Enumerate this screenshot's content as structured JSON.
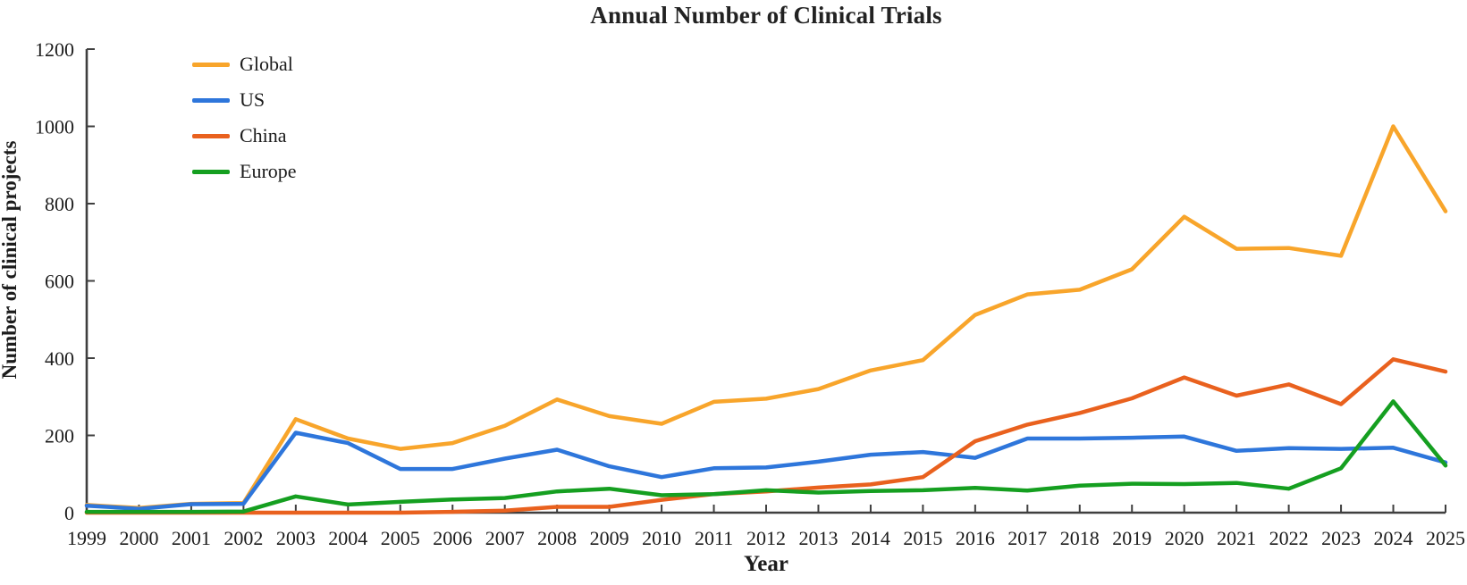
{
  "chart_data": {
    "type": "line",
    "title": "Annual Number of Clinical Trials",
    "xlabel": "Year",
    "ylabel": "Number of clinical projects",
    "x": [
      1999,
      2000,
      2001,
      2002,
      2003,
      2004,
      2005,
      2006,
      2007,
      2008,
      2009,
      2010,
      2011,
      2012,
      2013,
      2014,
      2015,
      2016,
      2017,
      2018,
      2019,
      2020,
      2021,
      2022,
      2023,
      2024,
      2025
    ],
    "ylim": [
      0,
      1200
    ],
    "yticks": [
      0,
      200,
      400,
      600,
      800,
      1000,
      1200
    ],
    "grid": false,
    "legend_position": "upper-left-inside",
    "axis_color": "#3f3f3f",
    "text_color": "#1c1c1c",
    "series": [
      {
        "name": "Global",
        "color": "#F8A52B",
        "values": [
          20,
          12,
          23,
          25,
          242,
          192,
          165,
          180,
          225,
          293,
          250,
          230,
          287,
          295,
          320,
          368,
          395,
          512,
          565,
          577,
          630,
          766,
          683,
          685,
          665,
          1000,
          780
        ]
      },
      {
        "name": "US",
        "color": "#2E76DB",
        "values": [
          18,
          10,
          22,
          23,
          207,
          180,
          113,
          113,
          140,
          163,
          120,
          92,
          115,
          117,
          132,
          150,
          157,
          142,
          192,
          192,
          194,
          197,
          160,
          167,
          165,
          168,
          130
        ]
      },
      {
        "name": "China",
        "color": "#E9611E",
        "values": [
          0,
          0,
          0,
          0,
          0,
          0,
          0,
          2,
          5,
          15,
          15,
          33,
          48,
          55,
          65,
          73,
          92,
          185,
          228,
          258,
          296,
          350,
          303,
          332,
          281,
          397,
          365
        ]
      },
      {
        "name": "Europe",
        "color": "#159F20",
        "values": [
          2,
          2,
          2,
          3,
          42,
          21,
          28,
          34,
          38,
          55,
          62,
          45,
          48,
          58,
          52,
          56,
          58,
          64,
          57,
          70,
          75,
          74,
          77,
          62,
          115,
          288,
          122
        ]
      }
    ]
  }
}
